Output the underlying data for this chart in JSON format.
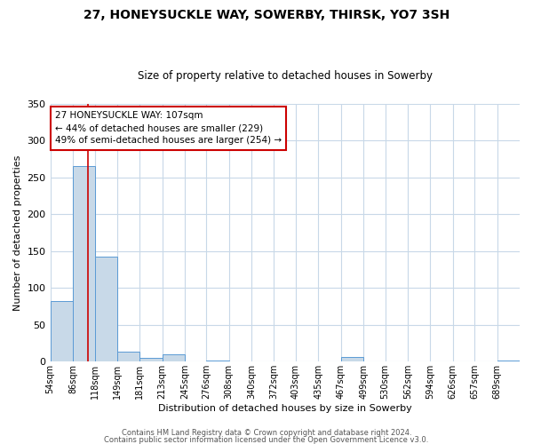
{
  "title": "27, HONEYSUCKLE WAY, SOWERBY, THIRSK, YO7 3SH",
  "subtitle": "Size of property relative to detached houses in Sowerby",
  "xlabel": "Distribution of detached houses by size in Sowerby",
  "ylabel": "Number of detached properties",
  "bin_edges": [
    54,
    86,
    118,
    149,
    181,
    213,
    245,
    276,
    308,
    340,
    372,
    403,
    435,
    467,
    499,
    530,
    562,
    594,
    626,
    657,
    689,
    721
  ],
  "bin_labels": [
    "54sqm",
    "86sqm",
    "118sqm",
    "149sqm",
    "181sqm",
    "213sqm",
    "245sqm",
    "276sqm",
    "308sqm",
    "340sqm",
    "372sqm",
    "403sqm",
    "435sqm",
    "467sqm",
    "499sqm",
    "530sqm",
    "562sqm",
    "594sqm",
    "626sqm",
    "657sqm",
    "689sqm"
  ],
  "counts": [
    82,
    265,
    142,
    14,
    5,
    10,
    0,
    2,
    0,
    0,
    0,
    0,
    0,
    6,
    0,
    0,
    0,
    0,
    0,
    0,
    1
  ],
  "bar_color": "#c8d9e8",
  "bar_edge_color": "#5b9bd5",
  "property_size": 107,
  "red_line_color": "#cc0000",
  "annotation_line1": "27 HONEYSUCKLE WAY: 107sqm",
  "annotation_line2": "← 44% of detached houses are smaller (229)",
  "annotation_line3": "49% of semi-detached houses are larger (254) →",
  "ylim": [
    0,
    350
  ],
  "yticks": [
    0,
    50,
    100,
    150,
    200,
    250,
    300,
    350
  ],
  "footer_line1": "Contains HM Land Registry data © Crown copyright and database right 2024.",
  "footer_line2": "Contains public sector information licensed under the Open Government Licence v3.0.",
  "background_color": "#ffffff",
  "grid_color": "#c8d8e8",
  "title_fontsize": 10,
  "subtitle_fontsize": 8.5,
  "ylabel_fontsize": 8,
  "xlabel_fontsize": 8
}
